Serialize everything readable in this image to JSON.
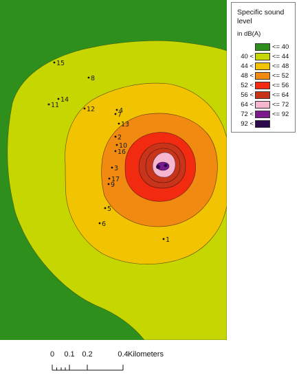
{
  "legend": {
    "title": "Specific sound level",
    "unit": "in dB(A)",
    "classes": [
      {
        "lower": "",
        "upper": "<= 40",
        "color": "#2f8f1d"
      },
      {
        "lower": "40 <",
        "upper": "<= 44",
        "color": "#c5d600"
      },
      {
        "lower": "44 <",
        "upper": "<= 48",
        "color": "#f2c300"
      },
      {
        "lower": "48 <",
        "upper": "<= 52",
        "color": "#f08a10"
      },
      {
        "lower": "52 <",
        "upper": "<= 56",
        "color": "#f22a10"
      },
      {
        "lower": "56 <",
        "upper": "<= 64",
        "color": "#c8341a"
      },
      {
        "lower": "64 <",
        "upper": "<= 72",
        "color": "#f7b6cf"
      },
      {
        "lower": "72 <",
        "upper": "<= 92",
        "color": "#7a1a8c"
      },
      {
        "lower": "92 <",
        "upper": "",
        "color": "#2a0a4a"
      }
    ]
  },
  "scale_bar": {
    "ticks": [
      "0",
      "0.1",
      "0.2",
      "0.4"
    ],
    "units": "Kilometers"
  },
  "receptors": [
    "1",
    "2",
    "3",
    "4",
    "5",
    "6",
    "7",
    "8",
    "9",
    "10",
    "11",
    "12",
    "13",
    "14",
    "15",
    "16",
    "17"
  ]
}
